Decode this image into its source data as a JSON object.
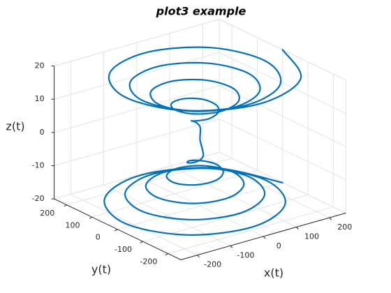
{
  "chart_data": {
    "type": "line3d",
    "title": "plot3 example",
    "xlabel": "x(t)",
    "ylabel": "y(t)",
    "zlabel": "z(t)",
    "xlim": [
      -250,
      250
    ],
    "ylim": [
      -250,
      250
    ],
    "zlim": [
      -20,
      20
    ],
    "xticks": [
      -200,
      -100,
      0,
      100,
      200
    ],
    "yticks": [
      -200,
      -100,
      0,
      100,
      200
    ],
    "zticks": [
      -20,
      -10,
      0,
      10,
      20
    ],
    "grid": true,
    "series": [
      {
        "color": "#0072bd",
        "x": [
          250,
          172.4,
          0,
          -163.5,
          -225,
          -154.7,
          0,
          145.8,
          200,
          137,
          0,
          -128.2,
          -175,
          -119.3,
          0,
          110.5,
          150,
          101.6,
          0,
          -92.8,
          -125,
          -84,
          0,
          75.1,
          100,
          66.3,
          0,
          -57.4,
          -75,
          -48.6,
          0,
          39.8,
          50,
          30.9,
          0,
          -22.1,
          -25,
          -13.3,
          0,
          4.4,
          0,
          4.4,
          0,
          -13.3,
          -25,
          -22.1,
          0,
          30.9,
          50,
          39.8,
          0,
          -48.6,
          -75,
          -57.4,
          0,
          66.3,
          100,
          75.1,
          0,
          -84,
          -125,
          -92.8,
          0,
          101.6,
          150,
          110.5,
          0,
          -119.3,
          -175,
          -128.2,
          0,
          137,
          200,
          145.8,
          0,
          -154.7,
          -225,
          -163.5,
          0,
          172.4,
          250
        ],
        "y": [
          0,
          172.4,
          237.5,
          163.5,
          0,
          -154.7,
          -212.5,
          -145.8,
          0,
          137,
          187.5,
          128.2,
          0,
          -119.3,
          -162.5,
          -110.5,
          0,
          101.6,
          137.5,
          92.8,
          0,
          -84,
          -112.5,
          -75.1,
          0,
          66.3,
          87.5,
          57.4,
          0,
          -48.6,
          -62.5,
          -39.8,
          0,
          30.9,
          37.5,
          22.1,
          0,
          -13.3,
          -12.5,
          -4.4,
          0,
          4.4,
          12.5,
          13.3,
          0,
          -22.1,
          -37.5,
          -30.9,
          0,
          39.8,
          62.5,
          48.6,
          0,
          -57.4,
          -87.5,
          -66.3,
          0,
          75.1,
          112.5,
          84,
          0,
          -92.8,
          -137.5,
          -101.6,
          0,
          110.5,
          162.5,
          119.3,
          0,
          -128.2,
          -187.5,
          -137,
          0,
          145.8,
          212.5,
          154.7,
          0,
          -163.5,
          -237.5,
          -172.4,
          0
        ],
        "z": [
          -20,
          -19.7,
          -19.5,
          -19.2,
          -19,
          -18.7,
          -18.4,
          -18.2,
          -17.9,
          -17.6,
          -17.3,
          -17,
          -16.7,
          -16.4,
          -16.1,
          -15.8,
          -15.5,
          -15.2,
          -14.8,
          -14.5,
          -14.1,
          -13.8,
          -13.4,
          -13,
          -12.6,
          -12.2,
          -11.8,
          -11.4,
          -11,
          -10.5,
          -10,
          -9.5,
          -8.9,
          -8.4,
          -7.7,
          -7.1,
          -6.3,
          -5.5,
          -4.5,
          -3.2,
          0,
          3.2,
          4.5,
          5.5,
          6.3,
          7.1,
          7.7,
          8.4,
          8.9,
          9.5,
          10,
          10.5,
          11,
          11.4,
          11.8,
          12.2,
          12.6,
          13,
          13.4,
          13.8,
          14.1,
          14.5,
          14.8,
          15.2,
          15.5,
          15.8,
          16.1,
          16.4,
          16.7,
          17,
          17.3,
          17.6,
          17.9,
          18.2,
          18.4,
          18.7,
          19,
          19.2,
          19.5,
          19.7,
          20
        ]
      }
    ]
  }
}
